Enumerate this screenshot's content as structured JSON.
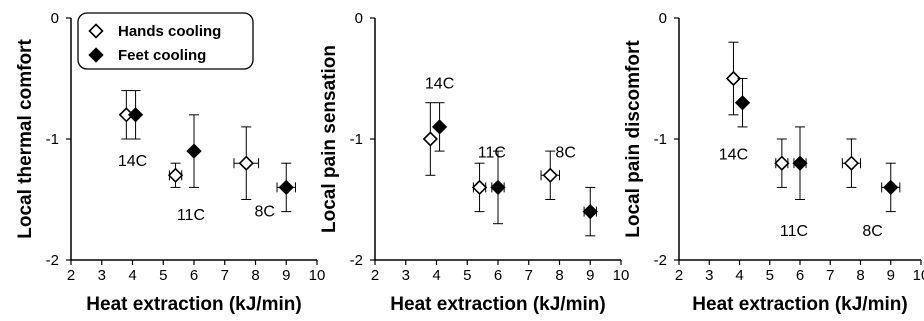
{
  "colors": {
    "axis": "#000000",
    "hollow_fill": "#ffffff",
    "solid_fill": "#000000"
  },
  "legend": {
    "placement": "top-left",
    "panel": 0,
    "series": [
      "Hands cooling",
      "Feet cooling"
    ]
  },
  "chart_data": [
    {
      "type": "scatter",
      "xlabel": "Heat extraction (kJ/min)",
      "ylabel": "Local thermal comfort",
      "xlim": [
        2,
        10
      ],
      "ylim": [
        -2,
        0
      ],
      "xticks": [
        "2",
        "3",
        "4",
        "5",
        "6",
        "7",
        "8",
        "9",
        "10"
      ],
      "yticks": [
        "-2",
        "-1",
        "0"
      ],
      "series": [
        {
          "name": "Hands cooling",
          "marker": "diamond-hollow",
          "points": [
            {
              "x": 3.8,
              "y": -0.8,
              "yerr": 0.2,
              "xerr": 0
            },
            {
              "x": 5.4,
              "y": -1.3,
              "yerr": 0.1,
              "xerr": 0.2
            },
            {
              "x": 7.7,
              "y": -1.2,
              "yerr": 0.3,
              "xerr": 0.4
            }
          ]
        },
        {
          "name": "Feet cooling",
          "marker": "diamond-filled",
          "points": [
            {
              "x": 4.1,
              "y": -0.8,
              "yerr": 0.2,
              "xerr": 0
            },
            {
              "x": 6.0,
              "y": -1.1,
              "yerr": 0.3,
              "xerr": 0
            },
            {
              "x": 9.0,
              "y": -1.4,
              "yerr": 0.2,
              "xerr": 0.3
            }
          ]
        }
      ],
      "annotations": [
        {
          "text": "14C",
          "x": 4.0,
          "y": -1.18
        },
        {
          "text": "11C",
          "x": 5.9,
          "y": -1.63
        },
        {
          "text": "8C",
          "x": 8.3,
          "y": -1.6
        }
      ]
    },
    {
      "type": "scatter",
      "xlabel": "Heat extraction (kJ/min)",
      "ylabel": "Local pain sensation",
      "xlim": [
        2,
        10
      ],
      "ylim": [
        -2,
        0
      ],
      "xticks": [
        "2",
        "3",
        "4",
        "5",
        "6",
        "7",
        "8",
        "9",
        "10"
      ],
      "yticks": [
        "-2",
        "-1",
        "0"
      ],
      "series": [
        {
          "name": "Hands cooling",
          "marker": "diamond-hollow",
          "points": [
            {
              "x": 3.8,
              "y": -1.0,
              "yerr": 0.3,
              "xerr": 0
            },
            {
              "x": 5.4,
              "y": -1.4,
              "yerr": 0.2,
              "xerr": 0.2
            },
            {
              "x": 7.7,
              "y": -1.3,
              "yerr": 0.2,
              "xerr": 0.3
            }
          ]
        },
        {
          "name": "Feet cooling",
          "marker": "diamond-filled",
          "points": [
            {
              "x": 4.1,
              "y": -0.9,
              "yerr": 0.2,
              "xerr": 0
            },
            {
              "x": 6.0,
              "y": -1.4,
              "yerr": 0.3,
              "xerr": 0.2
            },
            {
              "x": 9.0,
              "y": -1.6,
              "yerr": 0.2,
              "xerr": 0.2
            }
          ]
        }
      ],
      "annotations": [
        {
          "text": "14C",
          "x": 4.1,
          "y": -0.54
        },
        {
          "text": "11C",
          "x": 5.8,
          "y": -1.11
        },
        {
          "text": "8C",
          "x": 8.2,
          "y": -1.11
        }
      ]
    },
    {
      "type": "scatter",
      "xlabel": "Heat extraction (kJ/min)",
      "ylabel": "Local pain discomfort",
      "xlim": [
        2,
        10
      ],
      "ylim": [
        -2,
        0
      ],
      "xticks": [
        "2",
        "3",
        "4",
        "5",
        "6",
        "7",
        "8",
        "9",
        "10"
      ],
      "yticks": [
        "-2",
        "-1",
        "0"
      ],
      "series": [
        {
          "name": "Hands cooling",
          "marker": "diamond-hollow",
          "points": [
            {
              "x": 3.8,
              "y": -0.5,
              "yerr": 0.3,
              "xerr": 0
            },
            {
              "x": 5.4,
              "y": -1.2,
              "yerr": 0.2,
              "xerr": 0.2
            },
            {
              "x": 7.7,
              "y": -1.2,
              "yerr": 0.2,
              "xerr": 0.3
            }
          ]
        },
        {
          "name": "Feet cooling",
          "marker": "diamond-filled",
          "points": [
            {
              "x": 4.1,
              "y": -0.7,
              "yerr": 0.2,
              "xerr": 0
            },
            {
              "x": 6.0,
              "y": -1.2,
              "yerr": 0.3,
              "xerr": 0.2
            },
            {
              "x": 9.0,
              "y": -1.4,
              "yerr": 0.2,
              "xerr": 0.3
            }
          ]
        }
      ],
      "annotations": [
        {
          "text": "14C",
          "x": 3.8,
          "y": -1.13
        },
        {
          "text": "11C",
          "x": 5.8,
          "y": -1.76
        },
        {
          "text": "8C",
          "x": 8.4,
          "y": -1.76
        }
      ]
    }
  ]
}
